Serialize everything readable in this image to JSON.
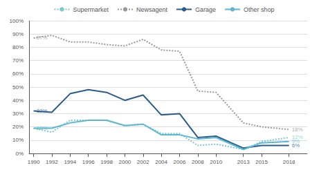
{
  "chart_data": {
    "type": "line",
    "x": [
      1990,
      1992,
      1994,
      1996,
      1998,
      2000,
      2002,
      2004,
      2006,
      2008,
      2010,
      2013,
      2015,
      2018
    ],
    "series": [
      {
        "name": "Supermarket",
        "color": "#7dc8c8",
        "line_style": "dotted",
        "values": [
          19,
          16,
          25,
          25,
          25,
          21,
          22,
          15,
          15,
          6,
          7,
          3,
          9,
          12
        ]
      },
      {
        "name": "Newsagent",
        "color": "#999999",
        "line_style": "dotted",
        "values": [
          87,
          89,
          84,
          84,
          82,
          81,
          86,
          78,
          77,
          47,
          46,
          23,
          20,
          18
        ]
      },
      {
        "name": "Garage",
        "color": "#2a5b8a",
        "line_style": "solid",
        "values": [
          32,
          31,
          45,
          48,
          46,
          40,
          44,
          29,
          30,
          12,
          13,
          4,
          6,
          6
        ]
      },
      {
        "name": "Other shop",
        "color": "#5ab8d0",
        "line_style": "solid",
        "values": [
          19,
          19,
          23,
          25,
          25,
          21,
          22,
          14,
          14,
          11,
          12,
          3,
          8,
          9
        ]
      }
    ],
    "annotations": [
      {
        "text": "87%",
        "x": 1990,
        "y": 87,
        "color": "#999999"
      },
      {
        "text": "32%",
        "x": 1990,
        "y": 32,
        "color": "#2a5b8a"
      },
      {
        "text": "19%",
        "x": 1990,
        "y": 19,
        "color": "#5ab8d0"
      },
      {
        "text": "18%",
        "x": 2018,
        "y": 18,
        "color": "#999999"
      },
      {
        "text": "12%",
        "x": 2018,
        "y": 12,
        "color": "#7dc8c8"
      },
      {
        "text": "9%",
        "x": 2018,
        "y": 9,
        "color": "#5ab8d0"
      },
      {
        "text": "6%",
        "x": 2018,
        "y": 6,
        "color": "#2a5b8a"
      }
    ],
    "xlim": [
      1989.5,
      2020
    ],
    "xticks": [
      1990,
      1992,
      1994,
      1996,
      1998,
      2000,
      2002,
      2004,
      2006,
      2008,
      2010,
      2013,
      2015,
      2018
    ],
    "ylim": [
      0,
      100
    ],
    "yticks": [
      {
        "value": 0,
        "label": "0%"
      },
      {
        "value": 10,
        "label": "10%"
      },
      {
        "value": 20,
        "label": "20%"
      },
      {
        "value": 30,
        "label": "30%"
      },
      {
        "value": 40,
        "label": "40%"
      },
      {
        "value": 50,
        "label": "50%"
      },
      {
        "value": 60,
        "label": "60%"
      },
      {
        "value": 70,
        "label": "70%"
      },
      {
        "value": 80,
        "label": "80%"
      },
      {
        "value": 90,
        "label": "90%"
      },
      {
        "value": 100,
        "label": "100%"
      }
    ],
    "grid": true,
    "legend": "top"
  }
}
